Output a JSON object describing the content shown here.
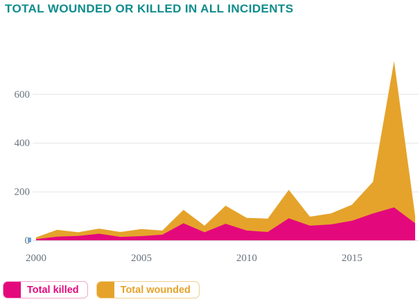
{
  "title": "TOTAL WOUNDED OR KILLED IN ALL INCIDENTS",
  "colors": {
    "title": "#0E8C8C",
    "killed": "#E4087D",
    "wounded": "#E5A32B",
    "killed_border": "#F2A3CC",
    "wounded_border": "#F0CE8E",
    "axis_text": "#68727D",
    "gridline": "#E4E4E4",
    "baseline": "#D9D9D9",
    "grip": "#6EA3D8"
  },
  "legend": [
    {
      "label": "Total killed"
    },
    {
      "label": "Total wounded"
    }
  ],
  "chart_data": {
    "type": "area",
    "stacked": true,
    "title": "TOTAL WOUNDED OR KILLED IN ALL INCIDENTS",
    "x": [
      2000,
      2001,
      2002,
      2003,
      2004,
      2005,
      2006,
      2007,
      2008,
      2009,
      2010,
      2011,
      2012,
      2013,
      2014,
      2015,
      2016,
      2017,
      2018
    ],
    "series": [
      {
        "name": "Total killed",
        "values": [
          5,
          15,
          18,
          27,
          14,
          17,
          23,
          70,
          33,
          68,
          40,
          34,
          90,
          60,
          65,
          80,
          110,
          135,
          70
        ]
      },
      {
        "name": "Total wounded",
        "values": [
          7,
          28,
          15,
          21,
          20,
          29,
          17,
          55,
          27,
          74,
          52,
          55,
          117,
          37,
          45,
          66,
          130,
          600,
          30
        ]
      }
    ],
    "totals": [
      12,
      43,
      33,
      48,
      34,
      46,
      40,
      125,
      60,
      142,
      92,
      89,
      207,
      97,
      110,
      146,
      240,
      735,
      100
    ],
    "xlabel": "",
    "ylabel": "",
    "xticks": [
      2000,
      2005,
      2010,
      2015
    ],
    "yticks": [
      0,
      200,
      400,
      600
    ],
    "ylim": [
      0,
      760
    ],
    "grid": true,
    "legend_position": "bottom-left"
  }
}
